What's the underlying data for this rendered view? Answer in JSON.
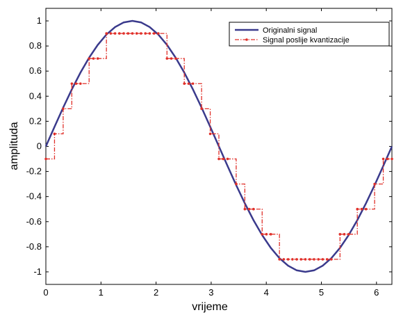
{
  "chart_data": {
    "type": "line",
    "title": "",
    "xlabel": "vrijeme",
    "ylabel": "amplituda",
    "xlim": [
      0,
      6.28
    ],
    "ylim": [
      -1.1,
      1.1
    ],
    "grid": false,
    "legend_position": "top-right",
    "x_ticks": [
      0,
      1,
      2,
      3,
      4,
      5,
      6
    ],
    "x_tick_labels": [
      "0",
      "1",
      "2",
      "3",
      "4",
      "5",
      "6"
    ],
    "y_ticks": [
      1,
      0.8,
      0.6,
      0.4,
      0.2,
      0,
      -0.2,
      -0.4,
      -0.6,
      -0.8,
      -1
    ],
    "y_tick_labels": [
      "1",
      "0.8",
      "0.6",
      "0.4",
      "0.2",
      "0",
      "-0.2",
      "-0.4",
      "-0.6",
      "-0.8",
      "-1"
    ],
    "x_step": 0.157,
    "series": [
      {
        "name": "Originalni signal",
        "color": "#3a3a8c",
        "style": "solid",
        "values": [
          0,
          0.156,
          0.309,
          0.454,
          0.588,
          0.707,
          0.809,
          0.891,
          0.951,
          0.988,
          1.0,
          0.988,
          0.951,
          0.891,
          0.809,
          0.707,
          0.588,
          0.454,
          0.309,
          0.156,
          0,
          -0.156,
          -0.309,
          -0.454,
          -0.588,
          -0.707,
          -0.809,
          -0.891,
          -0.951,
          -0.988,
          -1.0,
          -0.988,
          -0.951,
          -0.891,
          -0.809,
          -0.707,
          -0.588,
          -0.454,
          -0.309,
          -0.156,
          0
        ]
      },
      {
        "name": "Signal poslije kvantizacije",
        "color": "#e0302a",
        "style": "dash-dot-markers",
        "values": [
          -0.1,
          0.1,
          0.3,
          0.5,
          0.5,
          0.7,
          0.7,
          0.9,
          0.9,
          0.9,
          0.9,
          0.9,
          0.9,
          0.9,
          0.7,
          0.7,
          0.5,
          0.5,
          0.3,
          0.1,
          -0.1,
          -0.1,
          -0.3,
          -0.5,
          -0.5,
          -0.7,
          -0.7,
          -0.9,
          -0.9,
          -0.9,
          -0.9,
          -0.9,
          -0.9,
          -0.9,
          -0.7,
          -0.7,
          -0.5,
          -0.5,
          -0.3,
          -0.1,
          -0.1
        ]
      }
    ]
  }
}
